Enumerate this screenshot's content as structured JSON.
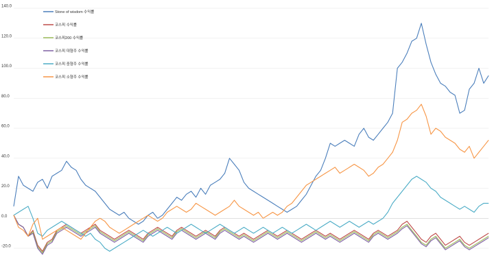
{
  "chart_data": {
    "type": "line",
    "ylim": [
      -20,
      140
    ],
    "yticks": [
      {
        "value": 140,
        "label": "140.0"
      },
      {
        "value": 120,
        "label": "120.0"
      },
      {
        "value": 100,
        "label": "100.0"
      },
      {
        "value": 80,
        "label": "80.0"
      },
      {
        "value": 60,
        "label": "60.0"
      },
      {
        "value": 40,
        "label": "40.0"
      },
      {
        "value": 20,
        "label": "20.0"
      },
      {
        "value": 0,
        "label": "0.0"
      },
      {
        "value": -20,
        "label": "-20.0"
      }
    ],
    "grid": true,
    "legend_position": "top-left",
    "x_count": 100,
    "series": [
      {
        "name": "Stone of wisdom 수익률",
        "color": "#4a7ebb",
        "values": [
          8,
          28,
          22,
          20,
          18,
          24,
          26,
          20,
          28,
          30,
          32,
          38,
          34,
          32,
          26,
          22,
          20,
          18,
          14,
          10,
          6,
          4,
          2,
          4,
          0,
          -2,
          -4,
          -2,
          2,
          4,
          0,
          2,
          6,
          10,
          14,
          12,
          16,
          18,
          14,
          20,
          16,
          22,
          24,
          26,
          30,
          40,
          36,
          32,
          24,
          20,
          18,
          16,
          14,
          12,
          10,
          8,
          6,
          4,
          6,
          8,
          12,
          16,
          22,
          28,
          32,
          40,
          50,
          48,
          50,
          52,
          50,
          48,
          56,
          60,
          54,
          52,
          56,
          60,
          64,
          70,
          100,
          104,
          110,
          118,
          120,
          130,
          116,
          104,
          96,
          90,
          88,
          84,
          82,
          70,
          72,
          86,
          90,
          100,
          90,
          95
        ]
      },
      {
        "name": "코스피 수익률",
        "color": "#be4b48",
        "values": [
          2,
          -4,
          -6,
          -12,
          -8,
          -18,
          -22,
          -16,
          -14,
          -8,
          -6,
          -4,
          -6,
          -8,
          -10,
          -8,
          -6,
          -4,
          -8,
          -10,
          -12,
          -14,
          -12,
          -10,
          -8,
          -10,
          -12,
          -14,
          -10,
          -8,
          -6,
          -8,
          -10,
          -12,
          -8,
          -6,
          -8,
          -10,
          -12,
          -10,
          -8,
          -10,
          -12,
          -8,
          -6,
          -8,
          -10,
          -12,
          -10,
          -12,
          -14,
          -12,
          -10,
          -8,
          -10,
          -12,
          -10,
          -8,
          -10,
          -12,
          -14,
          -12,
          -10,
          -8,
          -10,
          -12,
          -10,
          -12,
          -14,
          -12,
          -10,
          -8,
          -10,
          -12,
          -14,
          -10,
          -8,
          -10,
          -12,
          -10,
          -8,
          -4,
          -2,
          -6,
          -10,
          -14,
          -16,
          -12,
          -10,
          -14,
          -18,
          -16,
          -14,
          -12,
          -16,
          -18,
          -16,
          -14,
          -12,
          -10
        ]
      },
      {
        "name": "코스피200 수익률",
        "color": "#9bbb59",
        "values": [
          2,
          -4,
          -6,
          -12,
          -9,
          -19,
          -23,
          -17,
          -15,
          -9,
          -7,
          -5,
          -7,
          -9,
          -11,
          -9,
          -7,
          -5,
          -9,
          -11,
          -13,
          -15,
          -13,
          -11,
          -9,
          -11,
          -13,
          -15,
          -11,
          -9,
          -7,
          -9,
          -11,
          -13,
          -9,
          -7,
          -9,
          -11,
          -13,
          -11,
          -9,
          -11,
          -13,
          -9,
          -7,
          -9,
          -11,
          -13,
          -11,
          -13,
          -15,
          -13,
          -11,
          -9,
          -11,
          -13,
          -11,
          -9,
          -11,
          -13,
          -15,
          -13,
          -11,
          -9,
          -11,
          -13,
          -11,
          -13,
          -15,
          -13,
          -11,
          -9,
          -11,
          -13,
          -15,
          -11,
          -9,
          -11,
          -13,
          -11,
          -9,
          -6,
          -4,
          -8,
          -12,
          -16,
          -18,
          -14,
          -12,
          -16,
          -20,
          -18,
          -16,
          -14,
          -18,
          -20,
          -18,
          -16,
          -14,
          -12
        ]
      },
      {
        "name": "코스피 대형주 수익률",
        "color": "#7e5fa3",
        "values": [
          2,
          -4,
          -6,
          -12,
          -10,
          -20,
          -24,
          -18,
          -16,
          -10,
          -8,
          -6,
          -8,
          -10,
          -12,
          -10,
          -8,
          -6,
          -10,
          -12,
          -14,
          -16,
          -14,
          -12,
          -10,
          -12,
          -14,
          -16,
          -12,
          -10,
          -8,
          -10,
          -12,
          -14,
          -10,
          -8,
          -10,
          -12,
          -14,
          -12,
          -10,
          -12,
          -14,
          -10,
          -8,
          -10,
          -12,
          -14,
          -12,
          -14,
          -16,
          -14,
          -12,
          -10,
          -12,
          -14,
          -12,
          -10,
          -12,
          -14,
          -16,
          -14,
          -12,
          -10,
          -12,
          -14,
          -12,
          -14,
          -16,
          -14,
          -12,
          -10,
          -12,
          -14,
          -16,
          -12,
          -10,
          -12,
          -14,
          -12,
          -10,
          -7,
          -5,
          -9,
          -13,
          -17,
          -19,
          -15,
          -13,
          -17,
          -21,
          -19,
          -17,
          -15,
          -19,
          -21,
          -19,
          -17,
          -15,
          -13
        ]
      },
      {
        "name": "코스피 중형주 수익률",
        "color": "#4bacc6",
        "values": [
          2,
          4,
          6,
          8,
          0,
          -10,
          -12,
          -8,
          -6,
          -4,
          -2,
          -4,
          -6,
          -8,
          -10,
          -12,
          -10,
          -14,
          -16,
          -20,
          -22,
          -20,
          -18,
          -16,
          -14,
          -12,
          -10,
          -8,
          -10,
          -12,
          -10,
          -8,
          -6,
          -8,
          -10,
          -8,
          -6,
          -4,
          -6,
          -8,
          -10,
          -8,
          -6,
          -4,
          -6,
          -8,
          -10,
          -8,
          -6,
          -8,
          -10,
          -8,
          -6,
          -8,
          -10,
          -8,
          -6,
          -8,
          -10,
          -8,
          -6,
          -4,
          -6,
          -8,
          -6,
          -4,
          -2,
          -4,
          -6,
          -4,
          -2,
          -4,
          -6,
          -4,
          -2,
          -4,
          -2,
          0,
          4,
          10,
          14,
          18,
          22,
          26,
          28,
          26,
          24,
          20,
          18,
          14,
          12,
          10,
          8,
          6,
          8,
          6,
          4,
          8,
          10,
          10
        ]
      },
      {
        "name": "코스피 소형주 수익률",
        "color": "#f79646",
        "values": [
          2,
          -6,
          -8,
          -12,
          -4,
          0,
          -14,
          -12,
          -10,
          -8,
          -6,
          -8,
          -10,
          -12,
          -14,
          -10,
          -6,
          -2,
          0,
          -2,
          -6,
          -8,
          -10,
          -8,
          -6,
          -4,
          -2,
          0,
          2,
          0,
          -2,
          0,
          4,
          6,
          8,
          6,
          4,
          6,
          10,
          8,
          6,
          4,
          2,
          4,
          6,
          8,
          12,
          8,
          6,
          4,
          2,
          4,
          0,
          2,
          4,
          2,
          4,
          8,
          10,
          14,
          18,
          22,
          24,
          26,
          28,
          30,
          32,
          34,
          30,
          32,
          34,
          36,
          34,
          32,
          28,
          30,
          34,
          36,
          40,
          44,
          52,
          64,
          66,
          70,
          72,
          76,
          68,
          56,
          60,
          58,
          54,
          52,
          50,
          46,
          44,
          48,
          40,
          44,
          48,
          52
        ]
      }
    ]
  }
}
